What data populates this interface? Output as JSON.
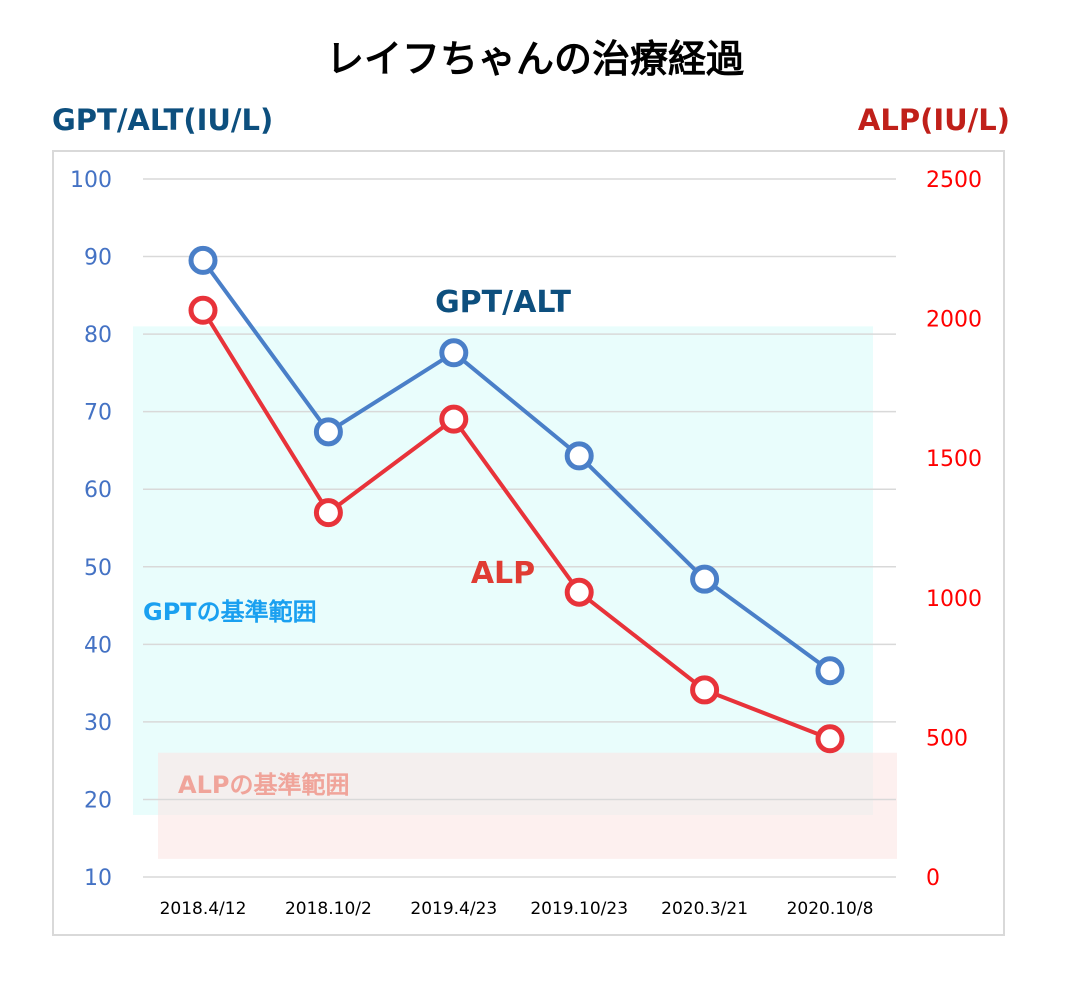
{
  "chart_data": {
    "type": "line",
    "title": "レイフちゃんの治療経過",
    "ylabel": "GPT/ALT(IU/L)",
    "y2label": "ALP(IU/L)",
    "ylim": [
      10,
      100
    ],
    "y2lim": [
      0,
      2500
    ],
    "yticks": [
      10,
      20,
      30,
      40,
      50,
      60,
      70,
      80,
      90,
      100
    ],
    "y2ticks": [
      0,
      500,
      1000,
      1500,
      2000,
      2500
    ],
    "grid": true,
    "categories": [
      "2018.4/12",
      "2018.10/2",
      "2019.4/23",
      "2019.10/23",
      "2020.3/21",
      "2020.10/8"
    ],
    "series": [
      {
        "name": "GPT/ALT",
        "axis": "left",
        "color": "#4a7fc8",
        "values": [
          89.5,
          67.4,
          77.6,
          64.3,
          48.4,
          36.6
        ]
      },
      {
        "name": "ALP",
        "axis": "right",
        "color": "#e8333a",
        "values": [
          2030,
          1305,
          1640,
          1020,
          670,
          495
        ]
      }
    ],
    "bands": [
      {
        "name": "GPTの基準範囲",
        "axis": "left",
        "range": [
          18,
          81
        ],
        "color": "#e9fdfc",
        "label_color": "#1aa0f0"
      },
      {
        "name": "ALPの基準範囲",
        "axis": "right",
        "range": [
          65,
          445
        ],
        "color": "#fbe6e4",
        "label_color": "#f0a49a"
      }
    ],
    "annotations": [
      {
        "text": "GPT/ALT",
        "color": "#0d4f7e"
      },
      {
        "text": "ALP",
        "color": "#e03c33"
      }
    ],
    "colors": {
      "left_axis": "#4472c4",
      "right_axis": "#ff0000",
      "left_title": "#0d4f7e",
      "right_title": "#c0201a"
    }
  }
}
